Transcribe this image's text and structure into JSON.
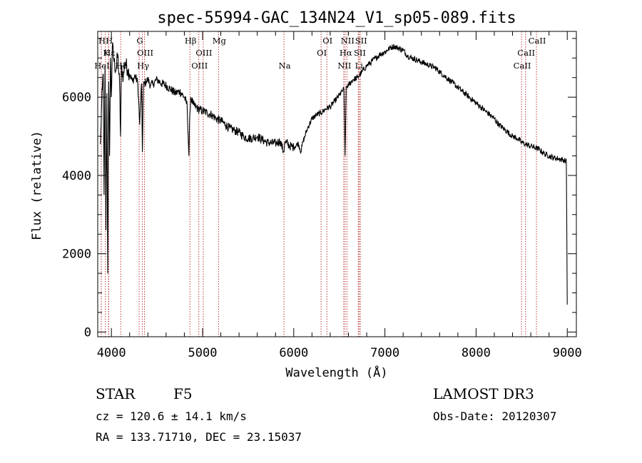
{
  "chart_data": {
    "type": "line",
    "title": "spec-55994-GAC_134N24_V1_sp05-089.fits",
    "xlabel": "Wavelength (Å)",
    "ylabel": "Flux (relative)",
    "xlim": [
      3850,
      9100
    ],
    "ylim": [
      -120,
      7680
    ],
    "xticks": [
      "4000",
      "5000",
      "6000",
      "7000",
      "8000",
      "9000"
    ],
    "yticks": [
      "0",
      "2000",
      "4000",
      "6000"
    ],
    "series": [
      {
        "name": "flux",
        "x": [
          3880,
          3890,
          3900,
          3910,
          3920,
          3930,
          3940,
          3950,
          3960,
          3970,
          3980,
          3990,
          4000,
          4010,
          4030,
          4050,
          4070,
          4090,
          4100,
          4110,
          4130,
          4150,
          4180,
          4200,
          4230,
          4260,
          4290,
          4310,
          4330,
          4340,
          4350,
          4380,
          4400,
          4430,
          4460,
          4500,
          4550,
          4600,
          4650,
          4700,
          4750,
          4800,
          4830,
          4850,
          4861,
          4870,
          4900,
          4950,
          5000,
          5050,
          5100,
          5150,
          5200,
          5250,
          5300,
          5350,
          5400,
          5450,
          5500,
          5550,
          5600,
          5650,
          5700,
          5750,
          5800,
          5850,
          5890,
          5900,
          5920,
          5950,
          6000,
          6050,
          6080,
          6100,
          6150,
          6200,
          6250,
          6300,
          6350,
          6400,
          6450,
          6500,
          6530,
          6550,
          6563,
          6575,
          6600,
          6650,
          6700,
          6750,
          6800,
          6850,
          6900,
          6950,
          7000,
          7050,
          7100,
          7150,
          7200,
          7250,
          7300,
          7350,
          7400,
          7450,
          7500,
          7550,
          7600,
          7650,
          7700,
          7750,
          7800,
          7850,
          7900,
          7950,
          8000,
          8050,
          8100,
          8150,
          8200,
          8250,
          8300,
          8350,
          8400,
          8450,
          8498,
          8542,
          8600,
          8662,
          8700,
          8750,
          8800,
          8850,
          8900,
          8950,
          8980,
          8990,
          9000
        ],
        "values": [
          4800,
          5600,
          6200,
          6600,
          3500,
          6800,
          2600,
          6100,
          1500,
          6400,
          4500,
          7000,
          6000,
          7300,
          6900,
          6700,
          7100,
          6300,
          5000,
          6800,
          6500,
          6900,
          6700,
          6600,
          6400,
          6550,
          6350,
          5300,
          6350,
          4600,
          6300,
          6400,
          6450,
          6300,
          6350,
          6450,
          6350,
          6300,
          6200,
          6100,
          6150,
          6000,
          5800,
          4500,
          5600,
          6000,
          5800,
          5700,
          5650,
          5600,
          5550,
          5450,
          5400,
          5300,
          5200,
          5150,
          5100,
          5000,
          4950,
          4950,
          5000,
          4920,
          4850,
          4830,
          4820,
          4880,
          4600,
          4800,
          4850,
          4760,
          4720,
          4820,
          4600,
          4850,
          5200,
          5450,
          5550,
          5600,
          5700,
          5750,
          5900,
          6050,
          6150,
          6200,
          4500,
          6250,
          6300,
          6450,
          6500,
          6650,
          6800,
          6900,
          7000,
          7100,
          7150,
          7250,
          7300,
          7250,
          7200,
          7050,
          7000,
          6950,
          6900,
          6850,
          6800,
          6750,
          6650,
          6550,
          6450,
          6350,
          6250,
          6150,
          6050,
          5950,
          5850,
          5750,
          5650,
          5550,
          5450,
          5300,
          5200,
          5100,
          5000,
          4950,
          4850,
          4800,
          4750,
          4700,
          4650,
          4550,
          4500,
          4450,
          4430,
          4400,
          4380,
          4350,
          700
        ]
      }
    ],
    "lines": [
      {
        "w": 3889,
        "label": "H",
        "row": 0
      },
      {
        "w": 3934,
        "label": "K",
        "row": 1
      },
      {
        "w": 3968,
        "label": "H",
        "row": 0
      },
      {
        "w": 3970,
        "label": "Hε",
        "row": 1
      },
      {
        "w": 3889,
        "label": "HeI",
        "row": 2
      },
      {
        "w": 4102,
        "label": "Hδ",
        "row": 2
      },
      {
        "w": 4304,
        "label": "G",
        "row": 0
      },
      {
        "w": 4340,
        "label": "Hγ",
        "row": 2
      },
      {
        "w": 4363,
        "label": "OIII",
        "row": 1
      },
      {
        "w": 4861,
        "label": "Hβ",
        "row": 0
      },
      {
        "w": 4959,
        "label": "OIII",
        "row": 2
      },
      {
        "w": 5007,
        "label": "OIII",
        "row": 1
      },
      {
        "w": 5175,
        "label": "Mg",
        "row": 0
      },
      {
        "w": 5893,
        "label": "Na",
        "row": 2
      },
      {
        "w": 6300,
        "label": "OI",
        "row": 1
      },
      {
        "w": 6363,
        "label": "OI",
        "row": 0
      },
      {
        "w": 6548,
        "label": "NII",
        "row": 2
      },
      {
        "w": 6563,
        "label": "Hα",
        "row": 1
      },
      {
        "w": 6583,
        "label": "NII",
        "row": 0
      },
      {
        "w": 6708,
        "label": "Li",
        "row": 2
      },
      {
        "w": 6717,
        "label": "SII",
        "row": 1
      },
      {
        "w": 6731,
        "label": "SII",
        "row": 0
      },
      {
        "w": 8498,
        "label": "CaII",
        "row": 2
      },
      {
        "w": 8542,
        "label": "CaII",
        "row": 1
      },
      {
        "w": 8662,
        "label": "CaII",
        "row": 0
      }
    ]
  },
  "info": {
    "object_class": "STAR",
    "subclass": "F5",
    "survey": "LAMOST DR3",
    "cz": "cz = 120.6 ± 14.1 km/s",
    "obs_date": "Obs-Date: 20120307",
    "coords": "RA = 133.71710, DEC =  23.15037"
  }
}
